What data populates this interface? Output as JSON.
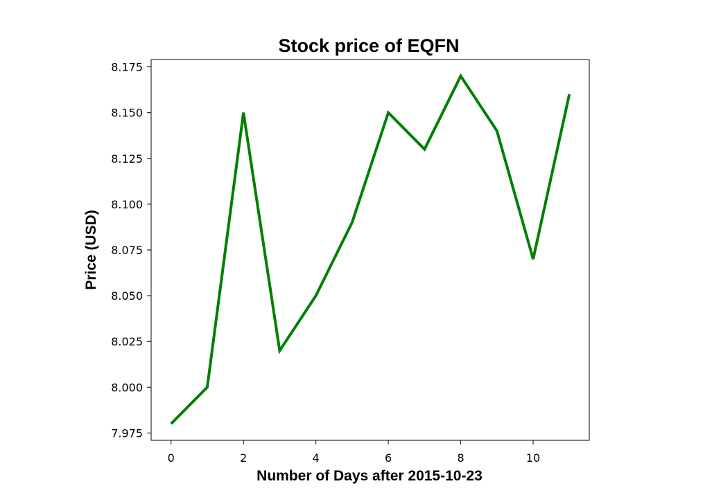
{
  "chart_data": {
    "type": "line",
    "title": "Stock price of EQFN",
    "xlabel": "Number of Days after 2015-10-23",
    "ylabel": "Price (USD)",
    "x": [
      0,
      1,
      2,
      3,
      4,
      5,
      6,
      7,
      8,
      9,
      10,
      11
    ],
    "series": [
      {
        "values": [
          7.98,
          8.0,
          8.15,
          8.02,
          8.05,
          8.09,
          8.15,
          8.13,
          8.17,
          8.14,
          8.07,
          8.16
        ],
        "color": "#008000"
      }
    ],
    "xlim": [
      -0.55,
      11.55
    ],
    "ylim": [
      7.971,
      8.179
    ],
    "xticks": [
      0,
      2,
      4,
      6,
      8,
      10
    ],
    "xtick_labels": [
      "0",
      "2",
      "4",
      "6",
      "8",
      "10"
    ],
    "yticks": [
      7.975,
      8.0,
      8.025,
      8.05,
      8.075,
      8.1,
      8.125,
      8.15,
      8.175
    ],
    "ytick_labels": [
      "7.975",
      "8.000",
      "8.025",
      "8.050",
      "8.075",
      "8.100",
      "8.125",
      "8.150",
      "8.175"
    ],
    "grid": false,
    "legend": "none"
  }
}
